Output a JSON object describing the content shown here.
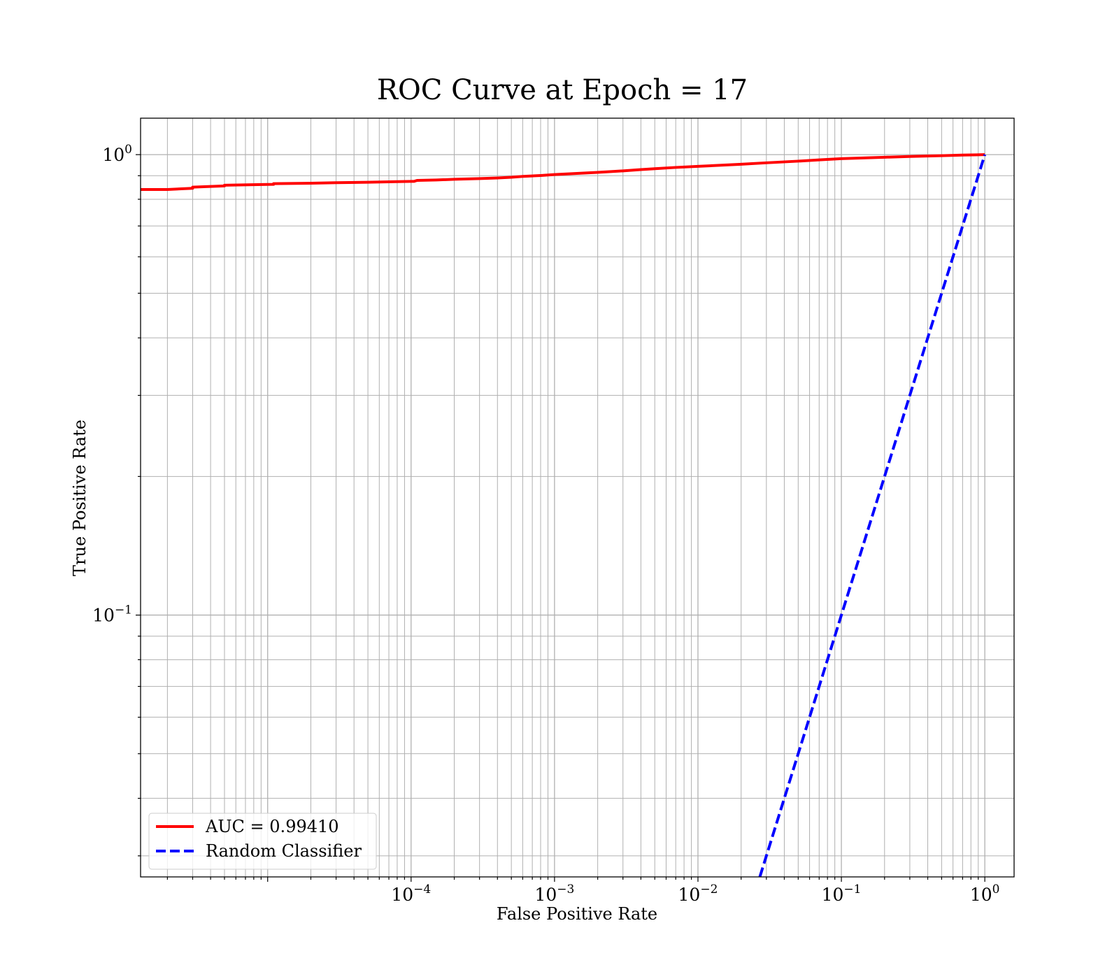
{
  "chart_data": {
    "type": "line",
    "title": "ROC Curve at Epoch = 17",
    "xlabel": "False Positive Rate",
    "ylabel": "True Positive Rate",
    "xscale": "log",
    "yscale": "log",
    "xlim": [
      1.3e-06,
      1.6
    ],
    "ylim": [
      0.027,
      1.2
    ],
    "grid": true,
    "grid_minor": true,
    "legend_location": "lower-left",
    "x_ticks": [
      {
        "value": 0.0001,
        "base": "10",
        "exp": "−4"
      },
      {
        "value": 0.001,
        "base": "10",
        "exp": "−3"
      },
      {
        "value": 0.01,
        "base": "10",
        "exp": "−2"
      },
      {
        "value": 0.1,
        "base": "10",
        "exp": "−1"
      },
      {
        "value": 1,
        "base": "10",
        "exp": "0"
      }
    ],
    "y_ticks": [
      {
        "value": 0.1,
        "base": "10",
        "exp": "−1"
      },
      {
        "value": 1,
        "base": "10",
        "exp": "0"
      }
    ],
    "series": [
      {
        "name": "AUC = 0.99410",
        "color": "#ff0000",
        "style": "solid",
        "x": [
          1.3e-06,
          2e-06,
          3e-06,
          3e-06,
          5e-06,
          5e-06,
          1.1e-05,
          1.1e-05,
          2e-05,
          3e-05,
          5e-05,
          7e-05,
          0.0001,
          0.000105,
          0.00011,
          0.00015,
          0.0002,
          0.0003,
          0.0004,
          0.0005,
          0.0006,
          0.0008,
          0.001,
          0.002,
          0.003,
          0.004,
          0.005,
          0.007,
          0.01,
          0.02,
          0.03,
          0.05,
          0.07,
          0.1,
          0.2,
          0.3,
          0.5,
          0.7,
          1.0
        ],
        "y": [
          0.84,
          0.84,
          0.845,
          0.85,
          0.855,
          0.858,
          0.862,
          0.865,
          0.867,
          0.869,
          0.871,
          0.873,
          0.875,
          0.875,
          0.879,
          0.881,
          0.884,
          0.887,
          0.89,
          0.893,
          0.897,
          0.901,
          0.905,
          0.915,
          0.922,
          0.928,
          0.932,
          0.938,
          0.943,
          0.953,
          0.96,
          0.968,
          0.974,
          0.98,
          0.987,
          0.991,
          0.995,
          0.998,
          1.0
        ]
      },
      {
        "name": "Random Classifier",
        "color": "#0000ff",
        "style": "dashed",
        "x": [
          0.027,
          1.0
        ],
        "y": [
          0.027,
          1.0
        ]
      }
    ]
  }
}
